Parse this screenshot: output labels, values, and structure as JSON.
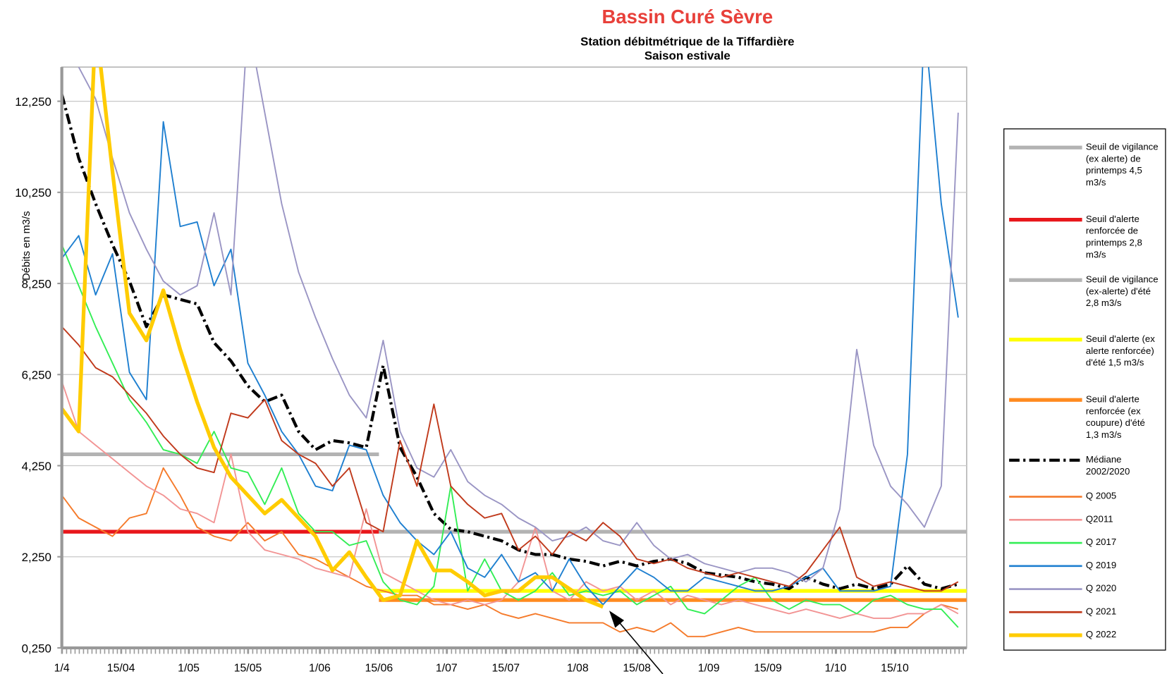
{
  "chart_data": {
    "type": "line",
    "title": "Bassin Curé Sèvre",
    "subtitle": [
      "Station débitmétrique de la Tiffardière",
      "Saison estivale"
    ],
    "y_label": "Débits en m3/s",
    "ylim": [
      0.25,
      13
    ],
    "yticks": [
      {
        "value": 0.25,
        "label": "0,250"
      },
      {
        "value": 2.25,
        "label": "2,250"
      },
      {
        "value": 4.25,
        "label": "4,250"
      },
      {
        "value": 6.25,
        "label": "6,250"
      },
      {
        "value": 8.25,
        "label": "8,250"
      },
      {
        "value": 10.25,
        "label": "10,250"
      },
      {
        "value": 12.25,
        "label": "12,250"
      }
    ],
    "xlim": [
      0,
      214
    ],
    "xticks": [
      {
        "value": 0,
        "label": "1/4"
      },
      {
        "value": 14,
        "label": "15/04"
      },
      {
        "value": 30,
        "label": "1/05"
      },
      {
        "value": 44,
        "label": "15/05"
      },
      {
        "value": 61,
        "label": "1/06"
      },
      {
        "value": 75,
        "label": "15/06"
      },
      {
        "value": 91,
        "label": "1/07"
      },
      {
        "value": 105,
        "label": "15/07"
      },
      {
        "value": 122,
        "label": "1/08"
      },
      {
        "value": 136,
        "label": "15/08"
      },
      {
        "value": 153,
        "label": "1/09"
      },
      {
        "value": 167,
        "label": "15/09"
      },
      {
        "value": 183,
        "label": "1/10"
      },
      {
        "value": 197,
        "label": "15/10"
      }
    ],
    "grid": true,
    "legend": "right",
    "x": [
      0,
      4,
      8,
      12,
      16,
      20,
      24,
      28,
      32,
      36,
      40,
      44,
      48,
      52,
      56,
      60,
      64,
      68,
      72,
      76,
      80,
      84,
      88,
      92,
      96,
      100,
      104,
      108,
      112,
      116,
      120,
      124,
      128,
      132,
      136,
      140,
      144,
      148,
      152,
      156,
      160,
      164,
      168,
      172,
      176,
      180,
      184,
      188,
      192,
      196,
      200,
      204,
      208,
      212
    ],
    "series": [
      {
        "name": "Seuil de vigilance (ex alerte) de printemps 4,5 m3/s",
        "color": "#b3b3b3",
        "linewidth": 5,
        "x": [
          0,
          75
        ],
        "values": [
          4.5,
          4.5
        ]
      },
      {
        "name": "Seuil d'alerte renforcée de printemps 2,8 m3/s",
        "color": "#e8171b",
        "linewidth": 5,
        "x": [
          0,
          75
        ],
        "values": [
          2.8,
          2.8
        ]
      },
      {
        "name": "Seuil de vigilance (ex-alerte) d'été 2,8 m3/s",
        "color": "#b3b3b3",
        "linewidth": 5,
        "x": [
          75,
          214
        ],
        "values": [
          2.8,
          2.8
        ]
      },
      {
        "name": "Seuil d'alerte (ex alerte renforcée) d'été 1,5 m3/s",
        "color": "#ffff00",
        "linewidth": 5,
        "x": [
          75,
          214
        ],
        "values": [
          1.5,
          1.5
        ]
      },
      {
        "name": "Seuil d'alerte renforcée (ex coupure) d'été 1,3 m3/s",
        "color": "#ff8a1f",
        "linewidth": 5,
        "x": [
          75,
          214
        ],
        "values": [
          1.3,
          1.3
        ]
      },
      {
        "name": "Médiane 2002/2020",
        "color": "#000000",
        "linewidth": 4,
        "dash": "dashdot",
        "values": [
          12.4,
          11,
          10,
          9.1,
          8.3,
          7.3,
          8.0,
          7.9,
          7.8,
          6.95,
          6.55,
          6.0,
          5.65,
          5.8,
          5.0,
          4.6,
          4.8,
          4.75,
          4.65,
          6.45,
          4.65,
          4.0,
          3.2,
          2.85,
          2.8,
          2.7,
          2.6,
          2.4,
          2.3,
          2.3,
          2.2,
          2.15,
          2.05,
          2.15,
          2.05,
          2.15,
          2.2,
          2.1,
          1.9,
          1.85,
          1.8,
          1.7,
          1.65,
          1.55,
          1.8,
          1.65,
          1.55,
          1.65,
          1.55,
          1.65,
          2.05,
          1.65,
          1.55,
          1.65
        ]
      },
      {
        "name": "Q 2005",
        "color": "#f57a2a",
        "linewidth": 1.8,
        "values": [
          3.6,
          3.1,
          2.9,
          2.7,
          3.1,
          3.2,
          4.2,
          3.6,
          2.9,
          2.7,
          2.6,
          3.0,
          2.6,
          2.8,
          2.3,
          2.2,
          2.0,
          1.8,
          1.6,
          1.5,
          1.4,
          1.4,
          1.2,
          1.2,
          1.1,
          1.2,
          1.0,
          0.9,
          1.0,
          0.9,
          0.8,
          0.8,
          0.8,
          0.6,
          0.7,
          0.6,
          0.8,
          0.5,
          0.5,
          0.6,
          0.7,
          0.6,
          0.6,
          0.6,
          0.6,
          0.6,
          0.6,
          0.6,
          0.6,
          0.7,
          0.7,
          1.0,
          1.2,
          1.1
        ]
      },
      {
        "name": "Q2011",
        "color": "#f29494",
        "linewidth": 1.8,
        "values": [
          6.1,
          5.0,
          4.7,
          4.4,
          4.1,
          3.8,
          3.6,
          3.3,
          3.2,
          3.0,
          4.5,
          2.8,
          2.4,
          2.3,
          2.2,
          2.0,
          1.9,
          1.8,
          3.3,
          1.9,
          1.7,
          1.5,
          1.3,
          1.2,
          1.3,
          1.2,
          1.3,
          1.7,
          2.9,
          1.5,
          1.3,
          1.7,
          1.5,
          1.6,
          1.3,
          1.5,
          1.2,
          1.4,
          1.3,
          1.2,
          1.3,
          1.2,
          1.1,
          1.0,
          1.1,
          1.0,
          0.9,
          1.0,
          0.9,
          0.9,
          1.0,
          1.0,
          1.2,
          1.0
        ]
      },
      {
        "name": "Q 2017",
        "color": "#33ee55",
        "linewidth": 1.8,
        "values": [
          9.1,
          8.2,
          7.3,
          6.5,
          5.7,
          5.2,
          4.6,
          4.5,
          4.3,
          5.0,
          4.2,
          4.1,
          3.4,
          4.2,
          3.2,
          2.8,
          2.8,
          2.5,
          2.6,
          1.7,
          1.3,
          1.2,
          1.6,
          3.8,
          1.5,
          2.2,
          1.5,
          1.3,
          1.5,
          1.9,
          1.4,
          1.5,
          1.4,
          1.5,
          1.2,
          1.4,
          1.6,
          1.1,
          1.0,
          1.3,
          1.6,
          1.8,
          1.3,
          1.1,
          1.3,
          1.2,
          1.2,
          1.0,
          1.3,
          1.4,
          1.2,
          1.1,
          1.1,
          0.7
        ]
      },
      {
        "name": "Q 2019",
        "color": "#1e7fd0",
        "linewidth": 1.8,
        "values": [
          8.8,
          9.3,
          8.0,
          8.9,
          6.3,
          5.7,
          11.8,
          9.5,
          9.6,
          8.2,
          9.0,
          6.5,
          5.8,
          5.0,
          4.5,
          3.8,
          3.7,
          4.7,
          4.6,
          3.6,
          3.0,
          2.6,
          2.3,
          2.8,
          2.0,
          1.8,
          2.3,
          1.7,
          1.9,
          1.5,
          2.2,
          1.6,
          1.2,
          1.6,
          2.0,
          1.8,
          1.5,
          1.5,
          1.8,
          1.7,
          1.6,
          1.5,
          1.5,
          1.6,
          1.8,
          2.0,
          1.5,
          1.5,
          1.5,
          1.6,
          4.5,
          14,
          10,
          7.5
        ]
      },
      {
        "name": "Q 2020",
        "color": "#9a95c4",
        "linewidth": 1.8,
        "values": [
          14,
          13,
          12.3,
          11.0,
          9.8,
          9.0,
          8.3,
          8.0,
          8.2,
          9.8,
          8.0,
          14,
          12.0,
          10.0,
          8.5,
          7.5,
          6.6,
          5.8,
          5.3,
          7.0,
          5.0,
          4.2,
          4.0,
          4.6,
          3.9,
          3.6,
          3.4,
          3.1,
          2.9,
          2.6,
          2.7,
          2.9,
          2.6,
          2.5,
          3.0,
          2.5,
          2.2,
          2.3,
          2.1,
          2.0,
          1.9,
          2.0,
          2.0,
          1.9,
          1.7,
          2.0,
          3.3,
          6.8,
          4.7,
          3.8,
          3.4,
          2.9,
          3.8,
          12.0
        ]
      },
      {
        "name": "Q 2021",
        "color": "#c0391b",
        "linewidth": 1.8,
        "values": [
          7.3,
          6.9,
          6.4,
          6.2,
          5.8,
          5.4,
          4.9,
          4.5,
          4.2,
          4.1,
          5.4,
          5.3,
          5.7,
          4.8,
          4.5,
          4.3,
          3.8,
          4.2,
          3.0,
          2.8,
          4.8,
          3.8,
          5.6,
          3.8,
          3.4,
          3.1,
          3.2,
          2.4,
          2.7,
          2.3,
          2.8,
          2.6,
          3.0,
          2.7,
          2.2,
          2.1,
          2.2,
          2.0,
          1.9,
          1.8,
          1.9,
          1.8,
          1.7,
          1.6,
          1.9,
          2.4,
          2.9,
          1.8,
          1.6,
          1.7,
          1.6,
          1.5,
          1.5,
          1.7
        ]
      },
      {
        "name": "Q 2022",
        "color": "#ffcc00",
        "linewidth": 5,
        "values": [
          5.5,
          5.0,
          14,
          10.7,
          7.6,
          7.0,
          8.1,
          6.8,
          5.65,
          4.65,
          4.0,
          3.6,
          3.2,
          3.5,
          3.1,
          2.7,
          1.95,
          2.35,
          1.8,
          1.3,
          1.4,
          2.6,
          1.95,
          1.95,
          1.7,
          1.4,
          1.5,
          1.5,
          1.8,
          1.8,
          1.55,
          1.3,
          1.15,
          null,
          null,
          null,
          null,
          null,
          null,
          null,
          null,
          null,
          null,
          null,
          null,
          null,
          null,
          null,
          null,
          null,
          null,
          null,
          null,
          null
        ]
      }
    ]
  }
}
